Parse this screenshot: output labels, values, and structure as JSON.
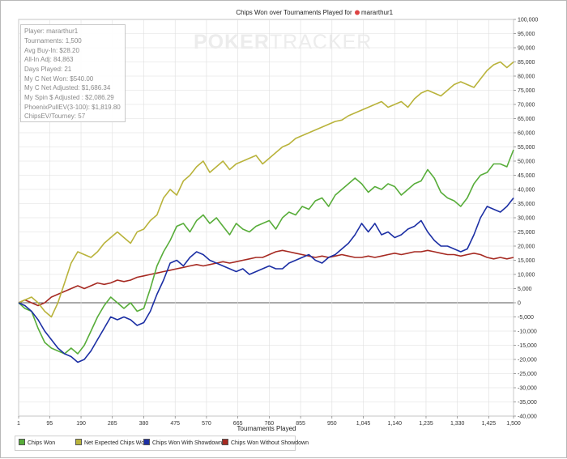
{
  "window": {
    "title_prefix": "Chips Won over Tournaments Played for",
    "player_name": "mararthur1",
    "watermark_left": "POKER",
    "watermark_right": "TRACKER"
  },
  "info_panel": {
    "lines": [
      "Player: mararthur1",
      "Tournaments: 1,500",
      "Avg Buy-In: $28.20",
      "All-In Adj: 84,863",
      "Days Played: 21",
      "My C Net Won: $540.00",
      "My C Net Adjusted: $1,686.34",
      "My Spin $ Adjusted : $2,086.29",
      "PhoenixPullEV(3-100): $1,819.80",
      "ChipsEV/Tourney: 57"
    ]
  },
  "colors": {
    "chips_won": "#58ad3a",
    "net_expected": "#b9b33b",
    "with_showdown": "#1c2fa4",
    "without_showdown": "#a62a22",
    "grid": "#dedede",
    "zero_line": "#555555"
  },
  "legend": {
    "items": [
      "Chips Won",
      "Net Expected Chips Won",
      "Chips Won With Showdown",
      "Chips Won Without Showdown"
    ]
  },
  "chart_data": {
    "type": "line",
    "title": "Chips Won over Tournaments Played for mararthur1",
    "xlabel": "Tournaments Played",
    "ylabel": "",
    "xlim": [
      1,
      1500
    ],
    "ylim": [
      -40000,
      100000
    ],
    "x_tick_labels": [
      "1",
      "95",
      "190",
      "285",
      "380",
      "475",
      "570",
      "665",
      "760",
      "855",
      "950",
      "1,045",
      "1,140",
      "1,235",
      "1,330",
      "1,425",
      "1,500"
    ],
    "x_tick_values": [
      1,
      95,
      190,
      285,
      380,
      475,
      570,
      665,
      760,
      855,
      950,
      1045,
      1140,
      1235,
      1330,
      1425,
      1500
    ],
    "y_tick_values": [
      -40000,
      -35000,
      -30000,
      -25000,
      -20000,
      -15000,
      -10000,
      -5000,
      0,
      5000,
      10000,
      15000,
      20000,
      25000,
      30000,
      35000,
      40000,
      45000,
      50000,
      55000,
      60000,
      65000,
      70000,
      75000,
      80000,
      85000,
      90000,
      95000,
      100000
    ],
    "y_tick_labels": [
      "-40,000",
      "-35,000",
      "-30,000",
      "-25,000",
      "-20,000",
      "-15,000",
      "-10,000",
      "-5,000",
      "0",
      "5,000",
      "10,000",
      "15,000",
      "20,000",
      "25,000",
      "30,000",
      "35,000",
      "40,000",
      "45,000",
      "50,000",
      "55,000",
      "60,000",
      "65,000",
      "70,000",
      "75,000",
      "80,000",
      "85,000",
      "90,000",
      "95,000",
      "100,000"
    ],
    "grid": true,
    "legend_position": "bottom-left",
    "series": [
      {
        "name": "Chips Won",
        "x": [
          1,
          20,
          40,
          60,
          80,
          100,
          120,
          140,
          160,
          180,
          200,
          220,
          240,
          260,
          280,
          300,
          320,
          340,
          360,
          380,
          400,
          420,
          440,
          460,
          480,
          500,
          520,
          540,
          560,
          580,
          600,
          620,
          640,
          660,
          680,
          700,
          720,
          740,
          760,
          780,
          800,
          820,
          840,
          860,
          880,
          900,
          920,
          940,
          960,
          980,
          1000,
          1020,
          1040,
          1060,
          1080,
          1100,
          1120,
          1140,
          1160,
          1180,
          1200,
          1220,
          1240,
          1260,
          1280,
          1300,
          1320,
          1340,
          1360,
          1380,
          1400,
          1420,
          1440,
          1460,
          1480,
          1500
        ],
        "y": [
          0,
          -2000,
          -3000,
          -9000,
          -14000,
          -16000,
          -17000,
          -18000,
          -16000,
          -18000,
          -15000,
          -10000,
          -5000,
          -1000,
          2000,
          0,
          -2000,
          0,
          -3000,
          -2000,
          5000,
          13000,
          18000,
          22000,
          27000,
          28000,
          25000,
          29000,
          31000,
          28000,
          30000,
          27000,
          24000,
          28000,
          26000,
          25000,
          27000,
          28000,
          29000,
          26000,
          30000,
          32000,
          31000,
          34000,
          33000,
          36000,
          37000,
          34000,
          38000,
          40000,
          42000,
          44000,
          42000,
          39000,
          41000,
          40000,
          42000,
          41000,
          38000,
          40000,
          42000,
          43000,
          47000,
          44000,
          39000,
          37000,
          36000,
          34000,
          37000,
          42000,
          45000,
          46000,
          49000,
          49000,
          48000,
          54000
        ]
      },
      {
        "name": "Net Expected Chips Won",
        "x": [
          1,
          20,
          40,
          60,
          80,
          100,
          120,
          140,
          160,
          180,
          200,
          220,
          240,
          260,
          280,
          300,
          320,
          340,
          360,
          380,
          400,
          420,
          440,
          460,
          480,
          500,
          520,
          540,
          560,
          580,
          600,
          620,
          640,
          660,
          680,
          700,
          720,
          740,
          760,
          780,
          800,
          820,
          840,
          860,
          880,
          900,
          920,
          940,
          960,
          980,
          1000,
          1020,
          1040,
          1060,
          1080,
          1100,
          1120,
          1140,
          1160,
          1180,
          1200,
          1220,
          1240,
          1260,
          1280,
          1300,
          1320,
          1340,
          1360,
          1380,
          1400,
          1420,
          1440,
          1460,
          1480,
          1500
        ],
        "y": [
          0,
          1000,
          2000,
          0,
          -3000,
          -5000,
          0,
          7000,
          14000,
          18000,
          17000,
          16000,
          18000,
          21000,
          23000,
          25000,
          23000,
          21000,
          25000,
          26000,
          29000,
          31000,
          37000,
          40000,
          38000,
          43000,
          45000,
          48000,
          50000,
          46000,
          48000,
          50000,
          47000,
          49000,
          50000,
          51000,
          52000,
          49000,
          51000,
          53000,
          55000,
          56000,
          58000,
          59000,
          60000,
          61000,
          62000,
          63000,
          64000,
          64500,
          66000,
          67000,
          68000,
          69000,
          70000,
          71000,
          69000,
          70000,
          71000,
          69000,
          72000,
          74000,
          75000,
          74000,
          73000,
          75000,
          77000,
          78000,
          77000,
          76000,
          79000,
          82000,
          84000,
          85000,
          83000,
          85000
        ]
      },
      {
        "name": "Chips Won With Showdown",
        "x": [
          1,
          20,
          40,
          60,
          80,
          100,
          120,
          140,
          160,
          180,
          200,
          220,
          240,
          260,
          280,
          300,
          320,
          340,
          360,
          380,
          400,
          420,
          440,
          460,
          480,
          500,
          520,
          540,
          560,
          580,
          600,
          620,
          640,
          660,
          680,
          700,
          720,
          740,
          760,
          780,
          800,
          820,
          840,
          860,
          880,
          900,
          920,
          940,
          960,
          980,
          1000,
          1020,
          1040,
          1060,
          1080,
          1100,
          1120,
          1140,
          1160,
          1180,
          1200,
          1220,
          1240,
          1260,
          1280,
          1300,
          1320,
          1340,
          1360,
          1380,
          1400,
          1420,
          1440,
          1460,
          1480,
          1500
        ],
        "y": [
          0,
          -1000,
          -3000,
          -6000,
          -10000,
          -13000,
          -16000,
          -18000,
          -19000,
          -21000,
          -20000,
          -17000,
          -13000,
          -9000,
          -5000,
          -6000,
          -5000,
          -6000,
          -8000,
          -7000,
          -3000,
          3000,
          8000,
          14000,
          15000,
          13000,
          16000,
          18000,
          17000,
          15000,
          14000,
          13000,
          12000,
          11000,
          12000,
          10000,
          11000,
          12000,
          13000,
          12000,
          12000,
          14000,
          15000,
          16000,
          17000,
          15000,
          14000,
          16000,
          17000,
          19000,
          21000,
          24000,
          28000,
          25000,
          28000,
          24000,
          25000,
          23000,
          24000,
          26000,
          27000,
          29000,
          25000,
          22000,
          20000,
          20000,
          19000,
          18000,
          19000,
          24000,
          30000,
          34000,
          33000,
          32000,
          34000,
          37000
        ]
      },
      {
        "name": "Chips Won Without Showdown",
        "x": [
          1,
          20,
          40,
          60,
          80,
          100,
          120,
          140,
          160,
          180,
          200,
          220,
          240,
          260,
          280,
          300,
          320,
          340,
          360,
          380,
          400,
          420,
          440,
          460,
          480,
          500,
          520,
          540,
          560,
          580,
          600,
          620,
          640,
          660,
          680,
          700,
          720,
          740,
          760,
          780,
          800,
          820,
          840,
          860,
          880,
          900,
          920,
          940,
          960,
          980,
          1000,
          1020,
          1040,
          1060,
          1080,
          1100,
          1120,
          1140,
          1160,
          1180,
          1200,
          1220,
          1240,
          1260,
          1280,
          1300,
          1320,
          1340,
          1360,
          1380,
          1400,
          1420,
          1440,
          1460,
          1480,
          1500
        ],
        "y": [
          0,
          1000,
          0,
          -1000,
          0,
          2000,
          3000,
          4000,
          5000,
          6000,
          5000,
          6000,
          7000,
          6500,
          7000,
          8000,
          7500,
          8000,
          9000,
          9500,
          10000,
          10500,
          11000,
          11500,
          12000,
          12500,
          13000,
          13500,
          13000,
          13500,
          14000,
          14500,
          14000,
          14500,
          15000,
          15500,
          16000,
          16000,
          17000,
          18000,
          18500,
          18000,
          17500,
          17000,
          16500,
          16000,
          16500,
          16000,
          16500,
          17000,
          16500,
          16000,
          16000,
          16500,
          16000,
          16500,
          17000,
          17500,
          17000,
          17500,
          18000,
          18000,
          18500,
          18000,
          17500,
          17000,
          17000,
          16500,
          17000,
          17500,
          17000,
          16000,
          15500,
          16000,
          15500,
          16000
        ]
      }
    ]
  }
}
